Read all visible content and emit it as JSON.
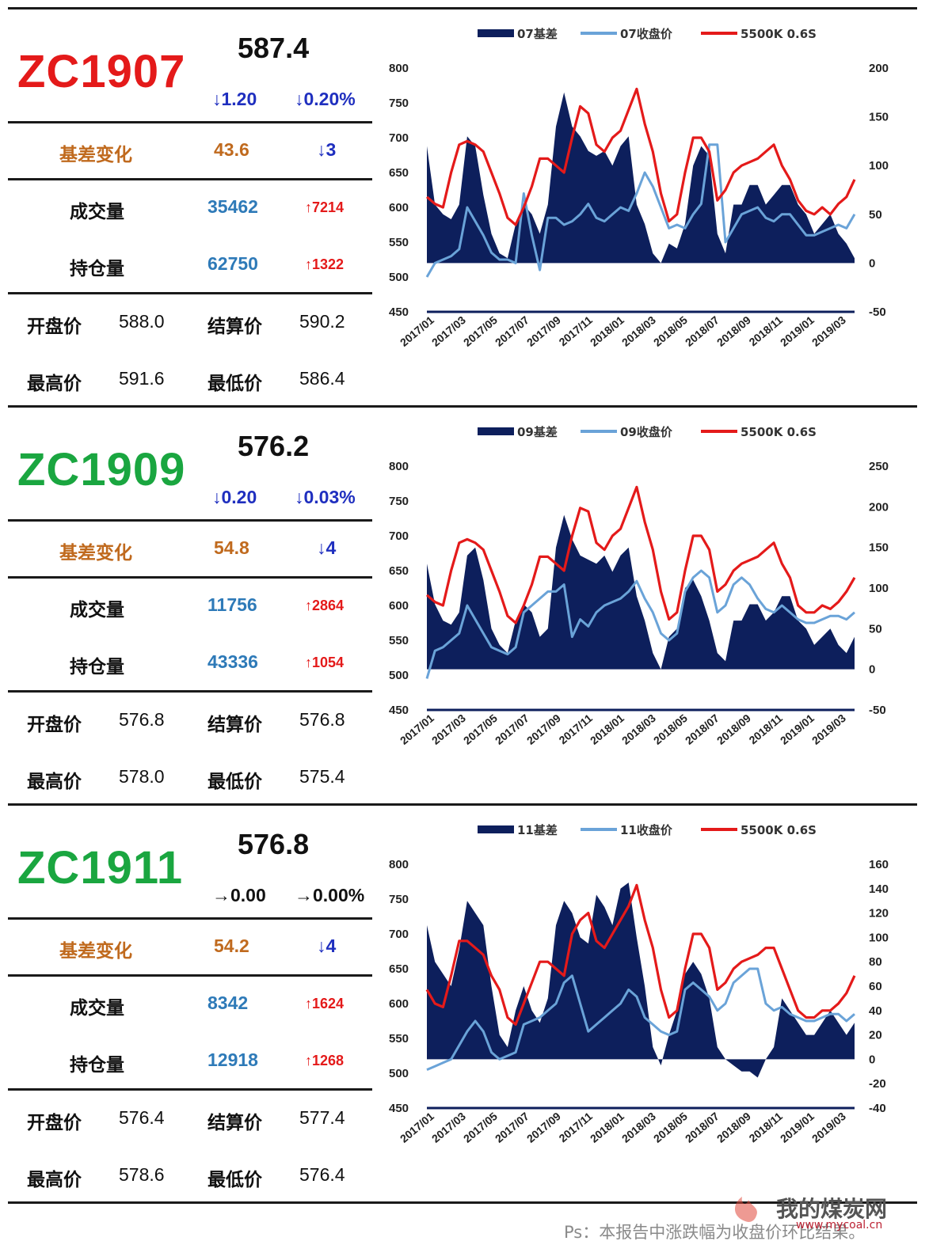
{
  "sections": [
    {
      "code": "ZC1907",
      "code_color": "#e41a1a",
      "price": "587.4",
      "change": "↓1.20",
      "change_pct": "↓0.20%",
      "change_neutral": false,
      "basis_label": "基差变化",
      "basis_value": "43.6",
      "basis_change": "↓3",
      "volume_label": "成交量",
      "volume_value": "35462",
      "volume_change": "↑7214",
      "oi_label": "持仓量",
      "oi_value": "62750",
      "oi_change": "↑1322",
      "open_label": "开盘价",
      "open_value": "588.0",
      "settle_label": "结算价",
      "settle_value": "590.2",
      "high_label": "最高价",
      "high_value": "591.6",
      "low_label": "最低价",
      "low_value": "586.4"
    },
    {
      "code": "ZC1909",
      "code_color": "#1aa640",
      "price": "576.2",
      "change": "↓0.20",
      "change_pct": "↓0.03%",
      "change_neutral": false,
      "basis_label": "基差变化",
      "basis_value": "54.8",
      "basis_change": "↓4",
      "volume_label": "成交量",
      "volume_value": "11756",
      "volume_change": "↑2864",
      "oi_label": "持仓量",
      "oi_value": "43336",
      "oi_change": "↑1054",
      "open_label": "开盘价",
      "open_value": "576.8",
      "settle_label": "结算价",
      "settle_value": "576.8",
      "high_label": "最高价",
      "high_value": "578.0",
      "low_label": "最低价",
      "low_value": "575.4"
    },
    {
      "code": "ZC1911",
      "code_color": "#1aa640",
      "price": "576.8",
      "change": "→0.00",
      "change_pct": "→0.00%",
      "change_neutral": true,
      "basis_label": "基差变化",
      "basis_value": "54.2",
      "basis_change": "↓4",
      "volume_label": "成交量",
      "volume_value": "8342",
      "volume_change": "↑1624",
      "oi_label": "持仓量",
      "oi_value": "12918",
      "oi_change": "↑1268",
      "open_label": "开盘价",
      "open_value": "576.4",
      "settle_label": "结算价",
      "settle_value": "577.4",
      "high_label": "最高价",
      "high_value": "578.6",
      "low_label": "最低价",
      "low_value": "576.4"
    }
  ],
  "colors": {
    "basis": "#0d1f5c",
    "close": "#6aa3d8",
    "spot": "#e41a1a",
    "brown": "#c06a1e",
    "blue_value": "#2e7ab8",
    "down": "#1f2fbf",
    "up": "#e41a1a"
  },
  "chart_data": [
    {
      "type": "area+line",
      "legend": [
        "07基差",
        "07收盘价",
        "5500K 0.6S"
      ],
      "legend_position": "top",
      "x_ticks": [
        "2017/01",
        "2017/03",
        "2017/05",
        "2017/07",
        "2017/09",
        "2017/11",
        "2018/01",
        "2018/03",
        "2018/05",
        "2018/07",
        "2018/09",
        "2018/11",
        "2019/01",
        "2019/03"
      ],
      "left_axis": {
        "ylim": [
          450,
          800
        ],
        "ticks": [
          800,
          750,
          700,
          650,
          600,
          550,
          500,
          450
        ]
      },
      "right_axis": {
        "ylim": [
          -50,
          200
        ],
        "ticks": [
          200,
          150,
          100,
          50,
          0,
          -50
        ]
      },
      "series": [
        {
          "name": "07基差",
          "axis": "right",
          "kind": "area",
          "values": [
            120,
            60,
            50,
            45,
            60,
            130,
            120,
            70,
            30,
            10,
            5,
            40,
            60,
            50,
            30,
            60,
            140,
            175,
            140,
            130,
            115,
            110,
            115,
            100,
            120,
            130,
            60,
            40,
            10,
            0,
            20,
            15,
            40,
            100,
            120,
            110,
            30,
            10,
            60,
            60,
            80,
            80,
            60,
            70,
            80,
            80,
            60,
            50,
            30,
            40,
            50,
            30,
            20,
            5
          ]
        },
        {
          "name": "07收盘价",
          "axis": "left",
          "values": [
            500,
            520,
            525,
            530,
            540,
            600,
            580,
            560,
            535,
            525,
            525,
            520,
            620,
            560,
            510,
            585,
            585,
            575,
            580,
            590,
            605,
            585,
            580,
            590,
            600,
            595,
            620,
            650,
            630,
            600,
            570,
            575,
            570,
            590,
            605,
            690,
            690,
            550,
            570,
            590,
            595,
            600,
            585,
            580,
            590,
            590,
            575,
            560,
            560,
            565,
            570,
            575,
            570,
            590
          ]
        },
        {
          "name": "5500K 0.6S",
          "axis": "left",
          "values": [
            615,
            605,
            600,
            650,
            690,
            695,
            690,
            680,
            650,
            620,
            585,
            575,
            600,
            630,
            670,
            670,
            660,
            650,
            700,
            745,
            735,
            690,
            680,
            700,
            710,
            740,
            770,
            720,
            680,
            620,
            580,
            590,
            650,
            700,
            700,
            680,
            610,
            625,
            650,
            660,
            665,
            670,
            680,
            690,
            660,
            640,
            610,
            595,
            590,
            600,
            590,
            605,
            615,
            640
          ]
        }
      ]
    },
    {
      "type": "area+line",
      "legend": [
        "09基差",
        "09收盘价",
        "5500K 0.6S"
      ],
      "legend_position": "top",
      "x_ticks": [
        "2017/01",
        "2017/03",
        "2017/05",
        "2017/07",
        "2017/09",
        "2017/11",
        "2018/01",
        "2018/03",
        "2018/05",
        "2018/07",
        "2018/09",
        "2018/11",
        "2019/01",
        "2019/03"
      ],
      "left_axis": {
        "ylim": [
          450,
          800
        ],
        "ticks": [
          800,
          750,
          700,
          650,
          600,
          550,
          500,
          450
        ]
      },
      "right_axis": {
        "ylim": [
          -50,
          250
        ],
        "ticks": [
          250,
          200,
          150,
          100,
          50,
          0,
          -50
        ]
      },
      "series": [
        {
          "name": "09基差",
          "axis": "right",
          "kind": "area",
          "values": [
            130,
            80,
            60,
            55,
            70,
            140,
            150,
            110,
            50,
            30,
            20,
            60,
            80,
            70,
            40,
            50,
            150,
            190,
            160,
            140,
            135,
            130,
            140,
            120,
            140,
            150,
            90,
            60,
            20,
            0,
            40,
            50,
            100,
            110,
            90,
            60,
            20,
            10,
            60,
            60,
            80,
            80,
            60,
            70,
            90,
            90,
            60,
            50,
            30,
            40,
            50,
            30,
            20,
            40
          ]
        },
        {
          "name": "09收盘价",
          "axis": "left",
          "values": [
            495,
            535,
            540,
            550,
            560,
            600,
            580,
            560,
            540,
            535,
            530,
            540,
            590,
            600,
            610,
            620,
            620,
            630,
            555,
            580,
            570,
            590,
            600,
            605,
            610,
            620,
            635,
            610,
            590,
            560,
            550,
            560,
            620,
            640,
            650,
            640,
            590,
            600,
            630,
            640,
            630,
            610,
            595,
            590,
            600,
            590,
            580,
            575,
            575,
            580,
            585,
            585,
            580,
            590
          ]
        },
        {
          "name": "5500K 0.6S",
          "axis": "left",
          "values": [
            615,
            605,
            600,
            650,
            690,
            695,
            690,
            680,
            650,
            620,
            585,
            575,
            600,
            630,
            670,
            670,
            660,
            650,
            700,
            740,
            735,
            690,
            680,
            700,
            710,
            740,
            770,
            720,
            680,
            620,
            580,
            590,
            650,
            700,
            700,
            680,
            620,
            630,
            650,
            660,
            665,
            670,
            680,
            690,
            660,
            640,
            600,
            590,
            590,
            600,
            595,
            605,
            620,
            640
          ]
        }
      ]
    },
    {
      "type": "area+line",
      "legend": [
        "11基差",
        "11收盘价",
        "5500K 0.6S"
      ],
      "legend_position": "top",
      "x_ticks": [
        "2017/01",
        "2017/03",
        "2017/05",
        "2017/07",
        "2017/09",
        "2017/11",
        "2018/01",
        "2018/03",
        "2018/05",
        "2018/07",
        "2018/09",
        "2018/11",
        "2019/01",
        "2019/03"
      ],
      "left_axis": {
        "ylim": [
          450,
          800
        ],
        "ticks": [
          800,
          750,
          700,
          650,
          600,
          550,
          500,
          450
        ]
      },
      "right_axis": {
        "ylim": [
          -40,
          160
        ],
        "ticks": [
          160,
          140,
          120,
          100,
          80,
          60,
          40,
          20,
          0,
          -20,
          -40
        ]
      },
      "series": [
        {
          "name": "11基差",
          "axis": "right",
          "kind": "area",
          "values": [
            110,
            80,
            70,
            60,
            90,
            130,
            120,
            110,
            60,
            20,
            10,
            40,
            60,
            40,
            30,
            50,
            110,
            130,
            120,
            100,
            95,
            135,
            125,
            110,
            140,
            145,
            100,
            60,
            10,
            -5,
            20,
            40,
            70,
            80,
            70,
            50,
            10,
            0,
            -5,
            -10,
            -10,
            -15,
            0,
            10,
            50,
            40,
            30,
            20,
            20,
            30,
            40,
            30,
            20,
            30
          ]
        },
        {
          "name": "11收盘价",
          "axis": "left",
          "values": [
            505,
            510,
            515,
            520,
            540,
            560,
            575,
            560,
            530,
            520,
            525,
            530,
            570,
            575,
            580,
            590,
            600,
            630,
            640,
            600,
            560,
            570,
            580,
            590,
            600,
            620,
            610,
            580,
            570,
            560,
            555,
            560,
            620,
            630,
            620,
            610,
            590,
            600,
            630,
            640,
            650,
            650,
            600,
            590,
            595,
            585,
            580,
            575,
            575,
            580,
            585,
            585,
            575,
            585
          ]
        },
        {
          "name": "5500K 0.6S",
          "axis": "left",
          "values": [
            620,
            600,
            595,
            640,
            690,
            690,
            680,
            670,
            640,
            620,
            580,
            570,
            600,
            630,
            660,
            660,
            650,
            640,
            700,
            720,
            730,
            690,
            680,
            700,
            720,
            740,
            770,
            720,
            680,
            620,
            580,
            590,
            650,
            700,
            700,
            680,
            620,
            630,
            650,
            660,
            665,
            670,
            680,
            680,
            650,
            620,
            590,
            580,
            580,
            590,
            590,
            600,
            615,
            640
          ]
        }
      ]
    }
  ],
  "footer_note": "Ps：本报告中涨跌幅为收盘价环比结果。",
  "watermark": {
    "name": "我的煤炭网",
    "url": "www.mycoal.cn"
  }
}
